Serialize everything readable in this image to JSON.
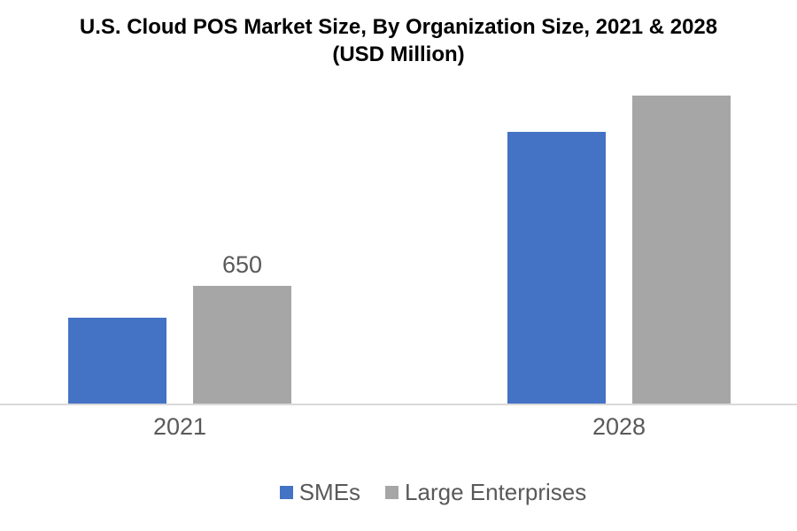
{
  "chart_data": {
    "type": "bar",
    "title": "U.S. Cloud POS Market Size, By Organization Size, 2021 & 2028 (USD Million)",
    "title_lines": [
      "U.S. Cloud POS Market Size, By Organization Size, 2021 & 2028",
      "(USD Million)"
    ],
    "categories": [
      "2021",
      "2028"
    ],
    "series": [
      {
        "name": "SMEs",
        "color": "#4472C4",
        "values": [
          475,
          1500
        ],
        "data_labels": [
          null,
          null
        ]
      },
      {
        "name": "Large Enterprises",
        "color": "#A6A6A6",
        "values": [
          650,
          1700
        ],
        "data_labels": [
          "650",
          null
        ]
      }
    ],
    "ylim": [
      0,
      1800
    ],
    "grid": false,
    "y_axis_visible": false,
    "legend_position": "bottom",
    "colors": {
      "axis_line": "#D9D9D9",
      "tick_text": "#595959",
      "data_label_text": "#595959",
      "legend_text": "#595959",
      "title_text": "#000000",
      "background": "#FFFFFF"
    }
  }
}
